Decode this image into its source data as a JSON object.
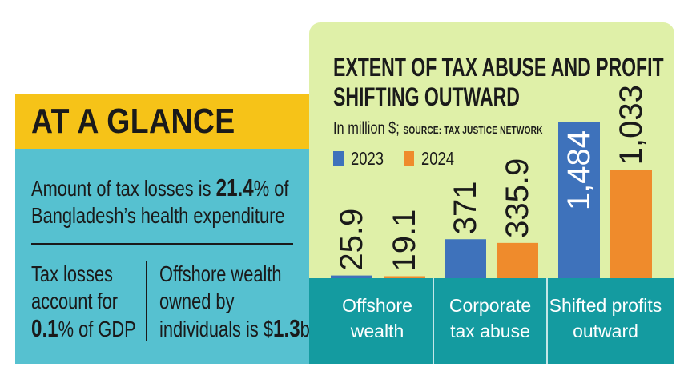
{
  "glance": {
    "title": "AT A GLANCE",
    "stat1": {
      "line1_pre": "Amount of tax losses is ",
      "line1_value": "21.4",
      "line1_post": "% of",
      "line2": "Bangladesh’s health expenditure"
    },
    "stat2": {
      "line1": "Tax losses",
      "line2": "account for",
      "line3_value": "0.1",
      "line3_post": "% of GDP"
    },
    "stat3": {
      "line1": "Offshore wealth",
      "line2": "owned by",
      "line3_pre": "individuals is $",
      "line3_value": "1.3",
      "line3_post": "b"
    }
  },
  "colors": {
    "glance_header": "#f6c318",
    "glance_body": "#56c1d0",
    "chart_bg": "#dff0a8",
    "axis_band": "#149ba0",
    "series_2023": "#3e72bb",
    "series_2024": "#ef8b2c",
    "bar_label_light": "#ffffff",
    "bar_label_dark": "#1a1a1a"
  },
  "chart_data": {
    "type": "bar",
    "title": "EXTENT OF TAX ABUSE AND PROFIT SHIFTING OUTWARD",
    "title_line1": "EXTENT OF TAX ABUSE AND PROFIT",
    "title_line2": "SHIFTING OUTWARD",
    "unit": "In million $;",
    "source": "SOURCE: TAX JUSTICE NETWORK",
    "xlabel": "",
    "ylabel": "In million $",
    "categories": [
      "Offshore wealth",
      "Corporate tax abuse",
      "Shifted profits outward"
    ],
    "category_lines": [
      [
        "Offshore",
        "wealth"
      ],
      [
        "Corporate",
        "tax abuse"
      ],
      [
        "Shifted profits",
        "outward"
      ]
    ],
    "series": [
      {
        "name": "2023",
        "values": [
          25.9,
          371,
          1484
        ],
        "labels": [
          "25.9",
          "371",
          "1,484"
        ]
      },
      {
        "name": "2024",
        "values": [
          19.1,
          335.9,
          1033
        ],
        "labels": [
          "19.1",
          "335.9",
          "1,033"
        ]
      }
    ],
    "ylim": [
      0,
      1484
    ],
    "grid": false,
    "legend": "top-left"
  }
}
